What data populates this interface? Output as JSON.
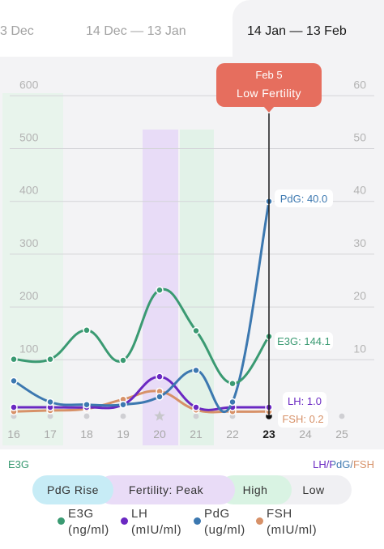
{
  "tabs": [
    {
      "label": "3 Dec"
    },
    {
      "label": "14 Dec — 13 Jan"
    },
    {
      "label": "14 Jan — 13 Feb"
    }
  ],
  "tooltip": {
    "date": "Feb 5",
    "status": "Low Fertility"
  },
  "colors": {
    "e3g": "#3a9a72",
    "lh": "#6a28c2",
    "pdg": "#3c78b0",
    "fsh": "#d79168",
    "tooltip_bg": "#e66e5e",
    "pdg_rise": "#c7ecf6",
    "fertility_peak": "#e9dcf7",
    "high": "#d9f3e3",
    "low": "#f0f0f3"
  },
  "chart_data": {
    "type": "line",
    "x": [
      16,
      17,
      18,
      19,
      20,
      21,
      22,
      23
    ],
    "x_ticks": [
      "16",
      "17",
      "18",
      "19",
      "20",
      "21",
      "22",
      "23",
      "24",
      "25"
    ],
    "y_left_ticks": [
      "600",
      "500",
      "400",
      "300",
      "200",
      "100"
    ],
    "y_right_ticks": [
      "60",
      "50",
      "40",
      "30",
      "20",
      "10"
    ],
    "ylim_left": [
      0,
      600
    ],
    "ylim_right": [
      0,
      60
    ],
    "left_axis_label": "E3G",
    "right_axis_label": "LH/PdG/FSH",
    "series": [
      {
        "name": "E3G",
        "axis": "left",
        "values": [
          101,
          101,
          156,
          99,
          232,
          155,
          55,
          144.1
        ]
      },
      {
        "name": "LH",
        "axis": "right",
        "values": [
          1.0,
          1.0,
          1.0,
          1.5,
          6.8,
          1.0,
          1.0,
          1.0
        ]
      },
      {
        "name": "PdG",
        "axis": "right",
        "values": [
          6.0,
          2.0,
          1.5,
          1.5,
          3.0,
          8.0,
          2.0,
          40.0
        ]
      },
      {
        "name": "FSH",
        "axis": "right",
        "values": [
          0.2,
          0.4,
          0.7,
          2.5,
          4.0,
          0.5,
          0.2,
          0.2
        ]
      }
    ],
    "value_labels": [
      {
        "text": "PdG: 40.0"
      },
      {
        "text": "E3G: 144.1"
      },
      {
        "text": "LH: 1.0"
      },
      {
        "text": "FSH: 0.2"
      }
    ],
    "highlight_x": 23
  },
  "phases": [
    {
      "label": "PdG Rise"
    },
    {
      "label": "Fertility: Peak"
    },
    {
      "label": "High"
    },
    {
      "label": "Low"
    }
  ],
  "legend": [
    {
      "name": "E3G",
      "unit": "(ng/ml)",
      "color": "#3a9a72"
    },
    {
      "name": "LH",
      "unit": "(mIU/ml)",
      "color": "#6a28c2"
    },
    {
      "name": "PdG",
      "unit": "(ug/ml)",
      "color": "#3c78b0"
    },
    {
      "name": "FSH",
      "unit": "(mIU/ml)",
      "color": "#d79168"
    }
  ]
}
